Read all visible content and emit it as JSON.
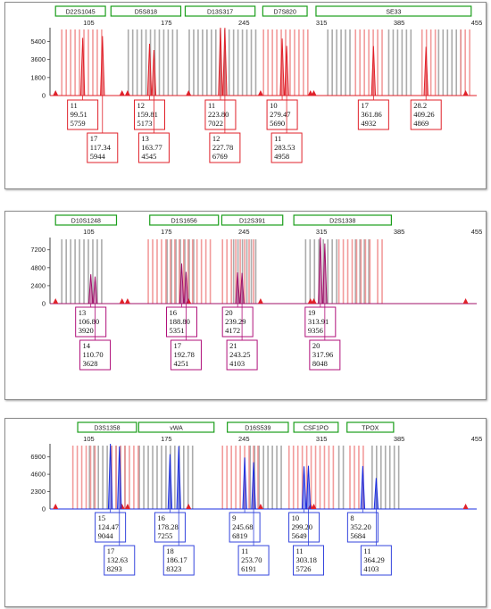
{
  "chart_data": [
    {
      "type": "electropherogram",
      "dye_color": "#e0212a",
      "label_color": "#e0212a",
      "x_ticks": [
        105,
        175,
        245,
        315,
        385,
        455
      ],
      "y_ticks": [
        1800,
        3600,
        5400
      ],
      "ylim": [
        0,
        6600
      ],
      "xlim": [
        70,
        455
      ],
      "markers": [
        {
          "name": "D22S1045",
          "range": [
            75,
            120
          ]
        },
        {
          "name": "D5S818",
          "range": [
            125,
            188
          ]
        },
        {
          "name": "D13S317",
          "range": [
            192,
            255
          ]
        },
        {
          "name": "D7S820",
          "range": [
            262,
            302
          ]
        },
        {
          "name": "SE33",
          "range": [
            310,
            450
          ]
        }
      ],
      "bins_gray": [
        [
          140,
          185
        ],
        [
          195,
          255
        ],
        [
          320,
          340
        ],
        [
          375,
          395
        ],
        [
          420,
          440
        ]
      ],
      "bins_red": [
        [
          80,
          118
        ],
        [
          262,
          305
        ],
        [
          345,
          370
        ],
        [
          405,
          420
        ],
        [
          440,
          448
        ]
      ],
      "peaks": [
        {
          "allele": "11",
          "size": 99.51,
          "height": 5759
        },
        {
          "allele": "17",
          "size": 117.34,
          "height": 5944
        },
        {
          "allele": "12",
          "size": 159.81,
          "height": 5173
        },
        {
          "allele": "13",
          "size": 163.77,
          "height": 4545
        },
        {
          "allele": "11",
          "size": 223.8,
          "height": 7022
        },
        {
          "allele": "12",
          "size": 227.78,
          "height": 6769
        },
        {
          "allele": "10",
          "size": 279.47,
          "height": 5690
        },
        {
          "allele": "11",
          "size": 283.53,
          "height": 4958
        },
        {
          "allele": "17",
          "size": 361.86,
          "height": 4932
        },
        {
          "allele": "28.2",
          "size": 409.26,
          "height": 4869
        }
      ],
      "calls": [
        {
          "allele": "11",
          "size": "99.51",
          "height": "5759",
          "row": 1
        },
        {
          "allele": "17",
          "size": "117.34",
          "height": "5944",
          "row": 2
        },
        {
          "allele": "12",
          "size": "159.81",
          "height": "5173",
          "row": 1
        },
        {
          "allele": "13",
          "size": "163.77",
          "height": "4545",
          "row": 2
        },
        {
          "allele": "11",
          "size": "223.80",
          "height": "7022",
          "row": 1
        },
        {
          "allele": "12",
          "size": "227.78",
          "height": "6769",
          "row": 2
        },
        {
          "allele": "10",
          "size": "279.47",
          "height": "5690",
          "row": 1
        },
        {
          "allele": "11",
          "size": "283.53",
          "height": "4958",
          "row": 2
        },
        {
          "allele": "17",
          "size": "361.86",
          "height": "4932",
          "row": 1
        },
        {
          "allele": "28.2",
          "size": "409.26",
          "height": "4869",
          "row": 1
        }
      ]
    },
    {
      "type": "electropherogram",
      "dye_color": "#a0106a",
      "label_color": "#b0107a",
      "x_ticks": [
        105,
        175,
        245,
        315,
        385,
        455
      ],
      "y_ticks": [
        2400,
        4800,
        7200
      ],
      "ylim": [
        0,
        8600
      ],
      "xlim": [
        70,
        455
      ],
      "markers": [
        {
          "name": "D10S1248",
          "range": [
            75,
            130
          ]
        },
        {
          "name": "D1S1656",
          "range": [
            160,
            222
          ]
        },
        {
          "name": "D12S391",
          "range": [
            225,
            280
          ]
        },
        {
          "name": "D2S1338",
          "range": [
            290,
            378
          ]
        }
      ],
      "bins_gray": [
        [
          80,
          118
        ],
        [
          175,
          200
        ],
        [
          235,
          255
        ],
        [
          300,
          330
        ],
        [
          345,
          360
        ]
      ],
      "bins_red": [
        [
          158,
          215
        ],
        [
          225,
          255
        ],
        [
          330,
          360
        ],
        [
          365,
          370
        ]
      ],
      "peaks": [
        {
          "allele": "13",
          "size": 106.8,
          "height": 3920
        },
        {
          "allele": "14",
          "size": 110.7,
          "height": 3628
        },
        {
          "allele": "16",
          "size": 188.8,
          "height": 5351
        },
        {
          "allele": "17",
          "size": 192.78,
          "height": 4251
        },
        {
          "allele": "20",
          "size": 239.29,
          "height": 4172
        },
        {
          "allele": "21",
          "size": 243.25,
          "height": 4103
        },
        {
          "allele": "19",
          "size": 313.91,
          "height": 9356
        },
        {
          "allele": "20",
          "size": 317.96,
          "height": 8048
        }
      ],
      "calls": [
        {
          "allele": "13",
          "size": "106.80",
          "height": "3920",
          "row": 1
        },
        {
          "allele": "14",
          "size": "110.70",
          "height": "3628",
          "row": 2
        },
        {
          "allele": "16",
          "size": "188.80",
          "height": "5351",
          "row": 1
        },
        {
          "allele": "17",
          "size": "192.78",
          "height": "4251",
          "row": 2
        },
        {
          "allele": "20",
          "size": "239.29",
          "height": "4172",
          "row": 1
        },
        {
          "allele": "21",
          "size": "243.25",
          "height": "4103",
          "row": 2
        },
        {
          "allele": "19",
          "size": "313.91",
          "height": "9356",
          "row": 1
        },
        {
          "allele": "20",
          "size": "317.96",
          "height": "8048",
          "row": 2
        }
      ]
    },
    {
      "type": "electropherogram",
      "dye_color": "#1a2de0",
      "label_color": "#3344dd",
      "x_ticks": [
        105,
        175,
        245,
        315,
        385,
        455
      ],
      "y_ticks": [
        2300,
        4600,
        6900
      ],
      "ylim": [
        0,
        8400
      ],
      "xlim": [
        70,
        455
      ],
      "markers": [
        {
          "name": "D3S1358",
          "range": [
            95,
            148
          ]
        },
        {
          "name": "vWA",
          "range": [
            150,
            218
          ]
        },
        {
          "name": "D16S539",
          "range": [
            230,
            285
          ]
        },
        {
          "name": "CSF1PO",
          "range": [
            290,
            330
          ]
        },
        {
          "name": "TPOX",
          "range": [
            338,
            380
          ]
        }
      ],
      "bins_gray": [
        [
          105,
          140
        ],
        [
          150,
          200
        ],
        [
          250,
          280
        ],
        [
          330,
          335
        ],
        [
          360,
          385
        ]
      ],
      "bins_red": [
        [
          90,
          110
        ],
        [
          125,
          150
        ],
        [
          225,
          260
        ],
        [
          285,
          325
        ],
        [
          340,
          355
        ]
      ],
      "peaks": [
        {
          "allele": "15",
          "size": 124.47,
          "height": 9044
        },
        {
          "allele": "17",
          "size": 132.63,
          "height": 8293
        },
        {
          "allele": "16",
          "size": 178.28,
          "height": 7255
        },
        {
          "allele": "18",
          "size": 186.17,
          "height": 8323
        },
        {
          "allele": "9",
          "size": 245.68,
          "height": 6819
        },
        {
          "allele": "11",
          "size": 253.7,
          "height": 6191
        },
        {
          "allele": "10",
          "size": 299.2,
          "height": 5649
        },
        {
          "allele": "11",
          "size": 303.18,
          "height": 5726
        },
        {
          "allele": "8",
          "size": 352.2,
          "height": 5684
        },
        {
          "allele": "11",
          "size": 364.29,
          "height": 4103
        }
      ],
      "calls": [
        {
          "allele": "15",
          "size": "124.47",
          "height": "9044",
          "row": 1
        },
        {
          "allele": "17",
          "size": "132.63",
          "height": "8293",
          "row": 2
        },
        {
          "allele": "16",
          "size": "178.28",
          "height": "7255",
          "row": 1
        },
        {
          "allele": "18",
          "size": "186.17",
          "height": "8323",
          "row": 2
        },
        {
          "allele": "9",
          "size": "245.68",
          "height": "6819",
          "row": 1
        },
        {
          "allele": "11",
          "size": "253.70",
          "height": "6191",
          "row": 2
        },
        {
          "allele": "10",
          "size": "299.20",
          "height": "5649",
          "row": 1
        },
        {
          "allele": "11",
          "size": "303.18",
          "height": "5726",
          "row": 2
        },
        {
          "allele": "8",
          "size": "352.20",
          "height": "5684",
          "row": 1
        },
        {
          "allele": "11",
          "size": "364.29",
          "height": "4103",
          "row": 2
        }
      ]
    }
  ]
}
